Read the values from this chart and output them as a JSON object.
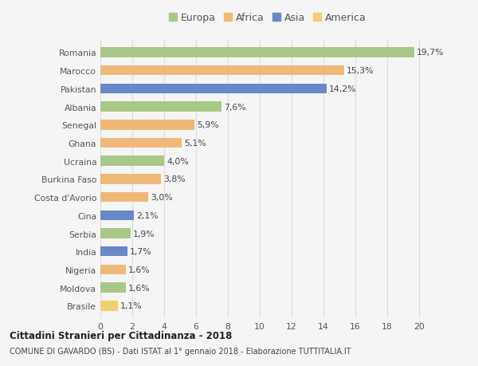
{
  "countries": [
    "Romania",
    "Marocco",
    "Pakistan",
    "Albania",
    "Senegal",
    "Ghana",
    "Ucraina",
    "Burkina Faso",
    "Costa d'Avorio",
    "Cina",
    "Serbia",
    "India",
    "Nigeria",
    "Moldova",
    "Brasile"
  ],
  "values": [
    19.7,
    15.3,
    14.2,
    7.6,
    5.9,
    5.1,
    4.0,
    3.8,
    3.0,
    2.1,
    1.9,
    1.7,
    1.6,
    1.6,
    1.1
  ],
  "labels": [
    "19,7%",
    "15,3%",
    "14,2%",
    "7,6%",
    "5,9%",
    "5,1%",
    "4,0%",
    "3,8%",
    "3,0%",
    "2,1%",
    "1,9%",
    "1,7%",
    "1,6%",
    "1,6%",
    "1,1%"
  ],
  "continents": [
    "Europa",
    "Africa",
    "Asia",
    "Europa",
    "Africa",
    "Africa",
    "Europa",
    "Africa",
    "Africa",
    "Asia",
    "Europa",
    "Asia",
    "Africa",
    "Europa",
    "America"
  ],
  "colors": {
    "Europa": "#a8c888",
    "Africa": "#f0b878",
    "Asia": "#6888c8",
    "America": "#f0d070"
  },
  "legend_order": [
    "Europa",
    "Africa",
    "Asia",
    "America"
  ],
  "title1": "Cittadini Stranieri per Cittadinanza - 2018",
  "title2": "COMUNE DI GAVARDO (BS) - Dati ISTAT al 1° gennaio 2018 - Elaborazione TUTTITALIA.IT",
  "xlim": [
    0,
    21
  ],
  "xticks": [
    0,
    2,
    4,
    6,
    8,
    10,
    12,
    14,
    16,
    18,
    20
  ],
  "background_color": "#f5f5f5",
  "bar_height": 0.55,
  "grid_color": "#dddddd",
  "label_fontsize": 7.8,
  "tick_fontsize": 7.8,
  "legend_fontsize": 9.0
}
